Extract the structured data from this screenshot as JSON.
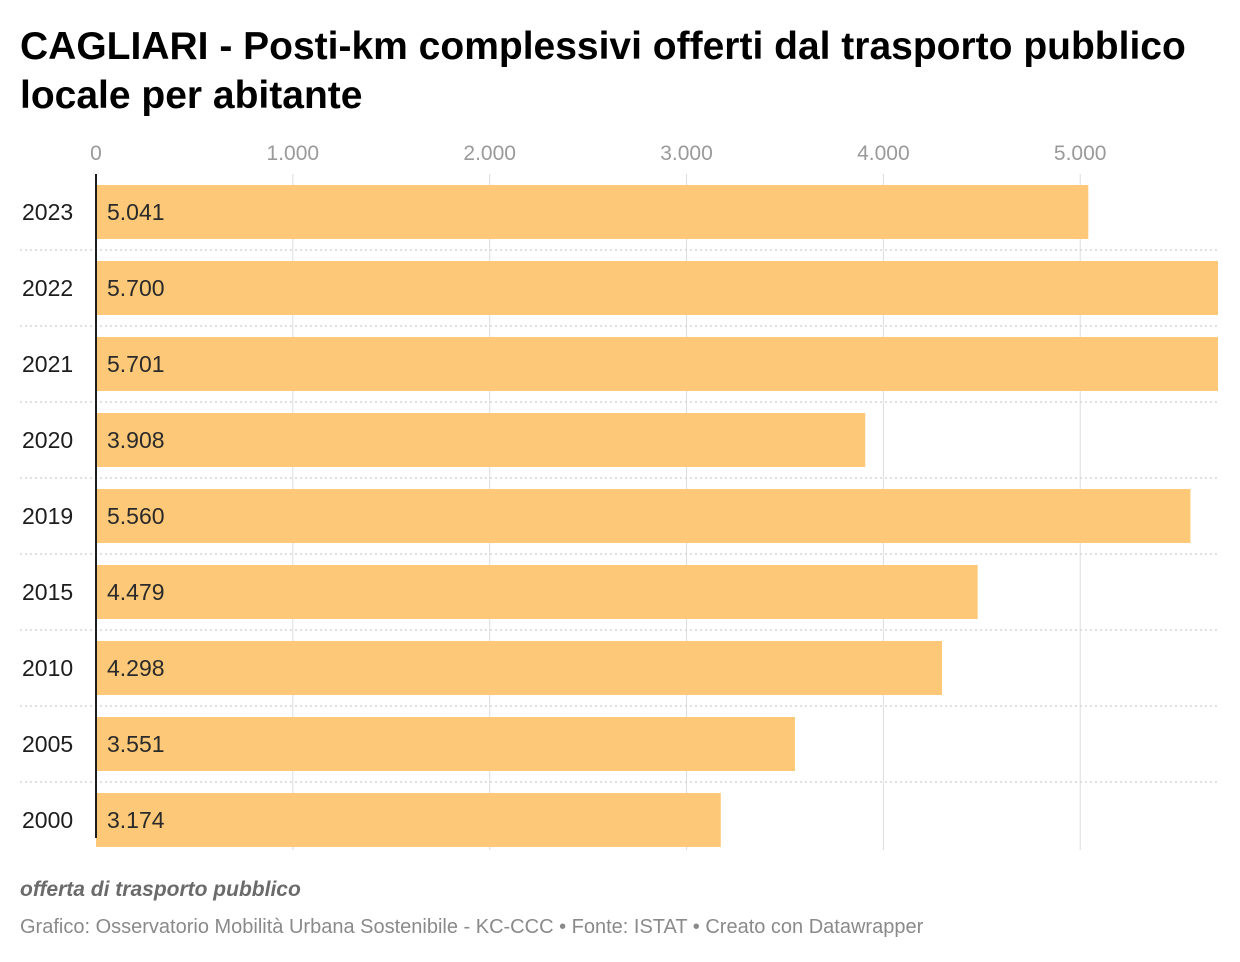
{
  "title": "CAGLIARI - Posti-km complessivi offerti dal trasporto pubblico locale per abitante",
  "chart_data": {
    "type": "bar",
    "orientation": "horizontal",
    "categories": [
      "2023",
      "2022",
      "2021",
      "2020",
      "2019",
      "2015",
      "2010",
      "2005",
      "2000"
    ],
    "values": [
      5041,
      5700,
      5701,
      3908,
      5560,
      4479,
      4298,
      3551,
      3174
    ],
    "value_labels": [
      "5.041",
      "5.700",
      "5.701",
      "3.908",
      "5.560",
      "4.479",
      "4.298",
      "3.551",
      "3.174"
    ],
    "x_ticks": [
      0,
      1000,
      2000,
      3000,
      4000,
      5000
    ],
    "x_tick_labels": [
      "0",
      "1.000",
      "2.000",
      "3.000",
      "4.000",
      "5.000"
    ],
    "xlim": [
      0,
      5700
    ],
    "grid": true,
    "bar_color": "#fdc978"
  },
  "footer": {
    "note": "offerta di trasporto pubblico",
    "credits": "Grafico: Osservatorio Mobilità Urbana Sostenibile - KC-CCC • Fonte: ISTAT • Creato con Datawrapper"
  }
}
